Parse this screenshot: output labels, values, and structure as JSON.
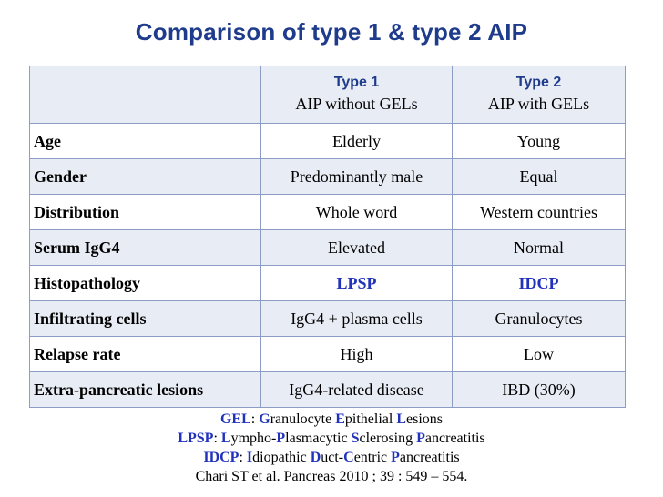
{
  "title": "Comparison of type 1 & type 2 AIP",
  "table": {
    "header": {
      "type1_label": "Type 1",
      "type1_sub": "AIP without GELs",
      "type2_label": "Type 2",
      "type2_sub": "AIP with GELs"
    },
    "rows": [
      {
        "label": "Age",
        "type1": "Elderly",
        "type2": "Young"
      },
      {
        "label": "Gender",
        "type1": "Predominantly male",
        "type2": "Equal"
      },
      {
        "label": "Distribution",
        "type1": "Whole word",
        "type2": "Western countries"
      },
      {
        "label": "Serum IgG4",
        "type1": "Elevated",
        "type2": "Normal"
      },
      {
        "label": "Histopathology",
        "type1": "LPSP",
        "type2": "IDCP"
      },
      {
        "label": "Infiltrating cells",
        "type1": "IgG4 + plasma cells",
        "type2": "Granulocytes"
      },
      {
        "label": "Relapse rate",
        "type1": "High",
        "type2": "Low"
      },
      {
        "label": "Extra-pancreatic lesions",
        "type1": "IgG4-related disease",
        "type2": "IBD (30%)"
      }
    ]
  },
  "footnotes": [
    {
      "abbr": "GEL",
      "parts": [
        [
          "G",
          "ranulocyte "
        ],
        [
          "E",
          "pithelial "
        ],
        [
          "L",
          "esions"
        ]
      ]
    },
    {
      "abbr": "LPSP",
      "parts": [
        [
          "L",
          "ympho-"
        ],
        [
          "P",
          "lasmacytic "
        ],
        [
          "S",
          "clerosing "
        ],
        [
          "P",
          "ancreatitis"
        ]
      ]
    },
    {
      "abbr": "IDCP",
      "parts": [
        [
          "I",
          "diopathic "
        ],
        [
          "D",
          "uct-"
        ],
        [
          "C",
          "entric "
        ],
        [
          "P",
          "ancreatitis"
        ]
      ]
    }
  ],
  "citation": "Chari ST et al.  Pancreas 2010 ; 39 : 549 – 554.",
  "colors": {
    "title": "#1f3c8c",
    "highlight": "#2233bb",
    "row_alt": "#e8ecf4",
    "border": "#8d9cc4"
  }
}
